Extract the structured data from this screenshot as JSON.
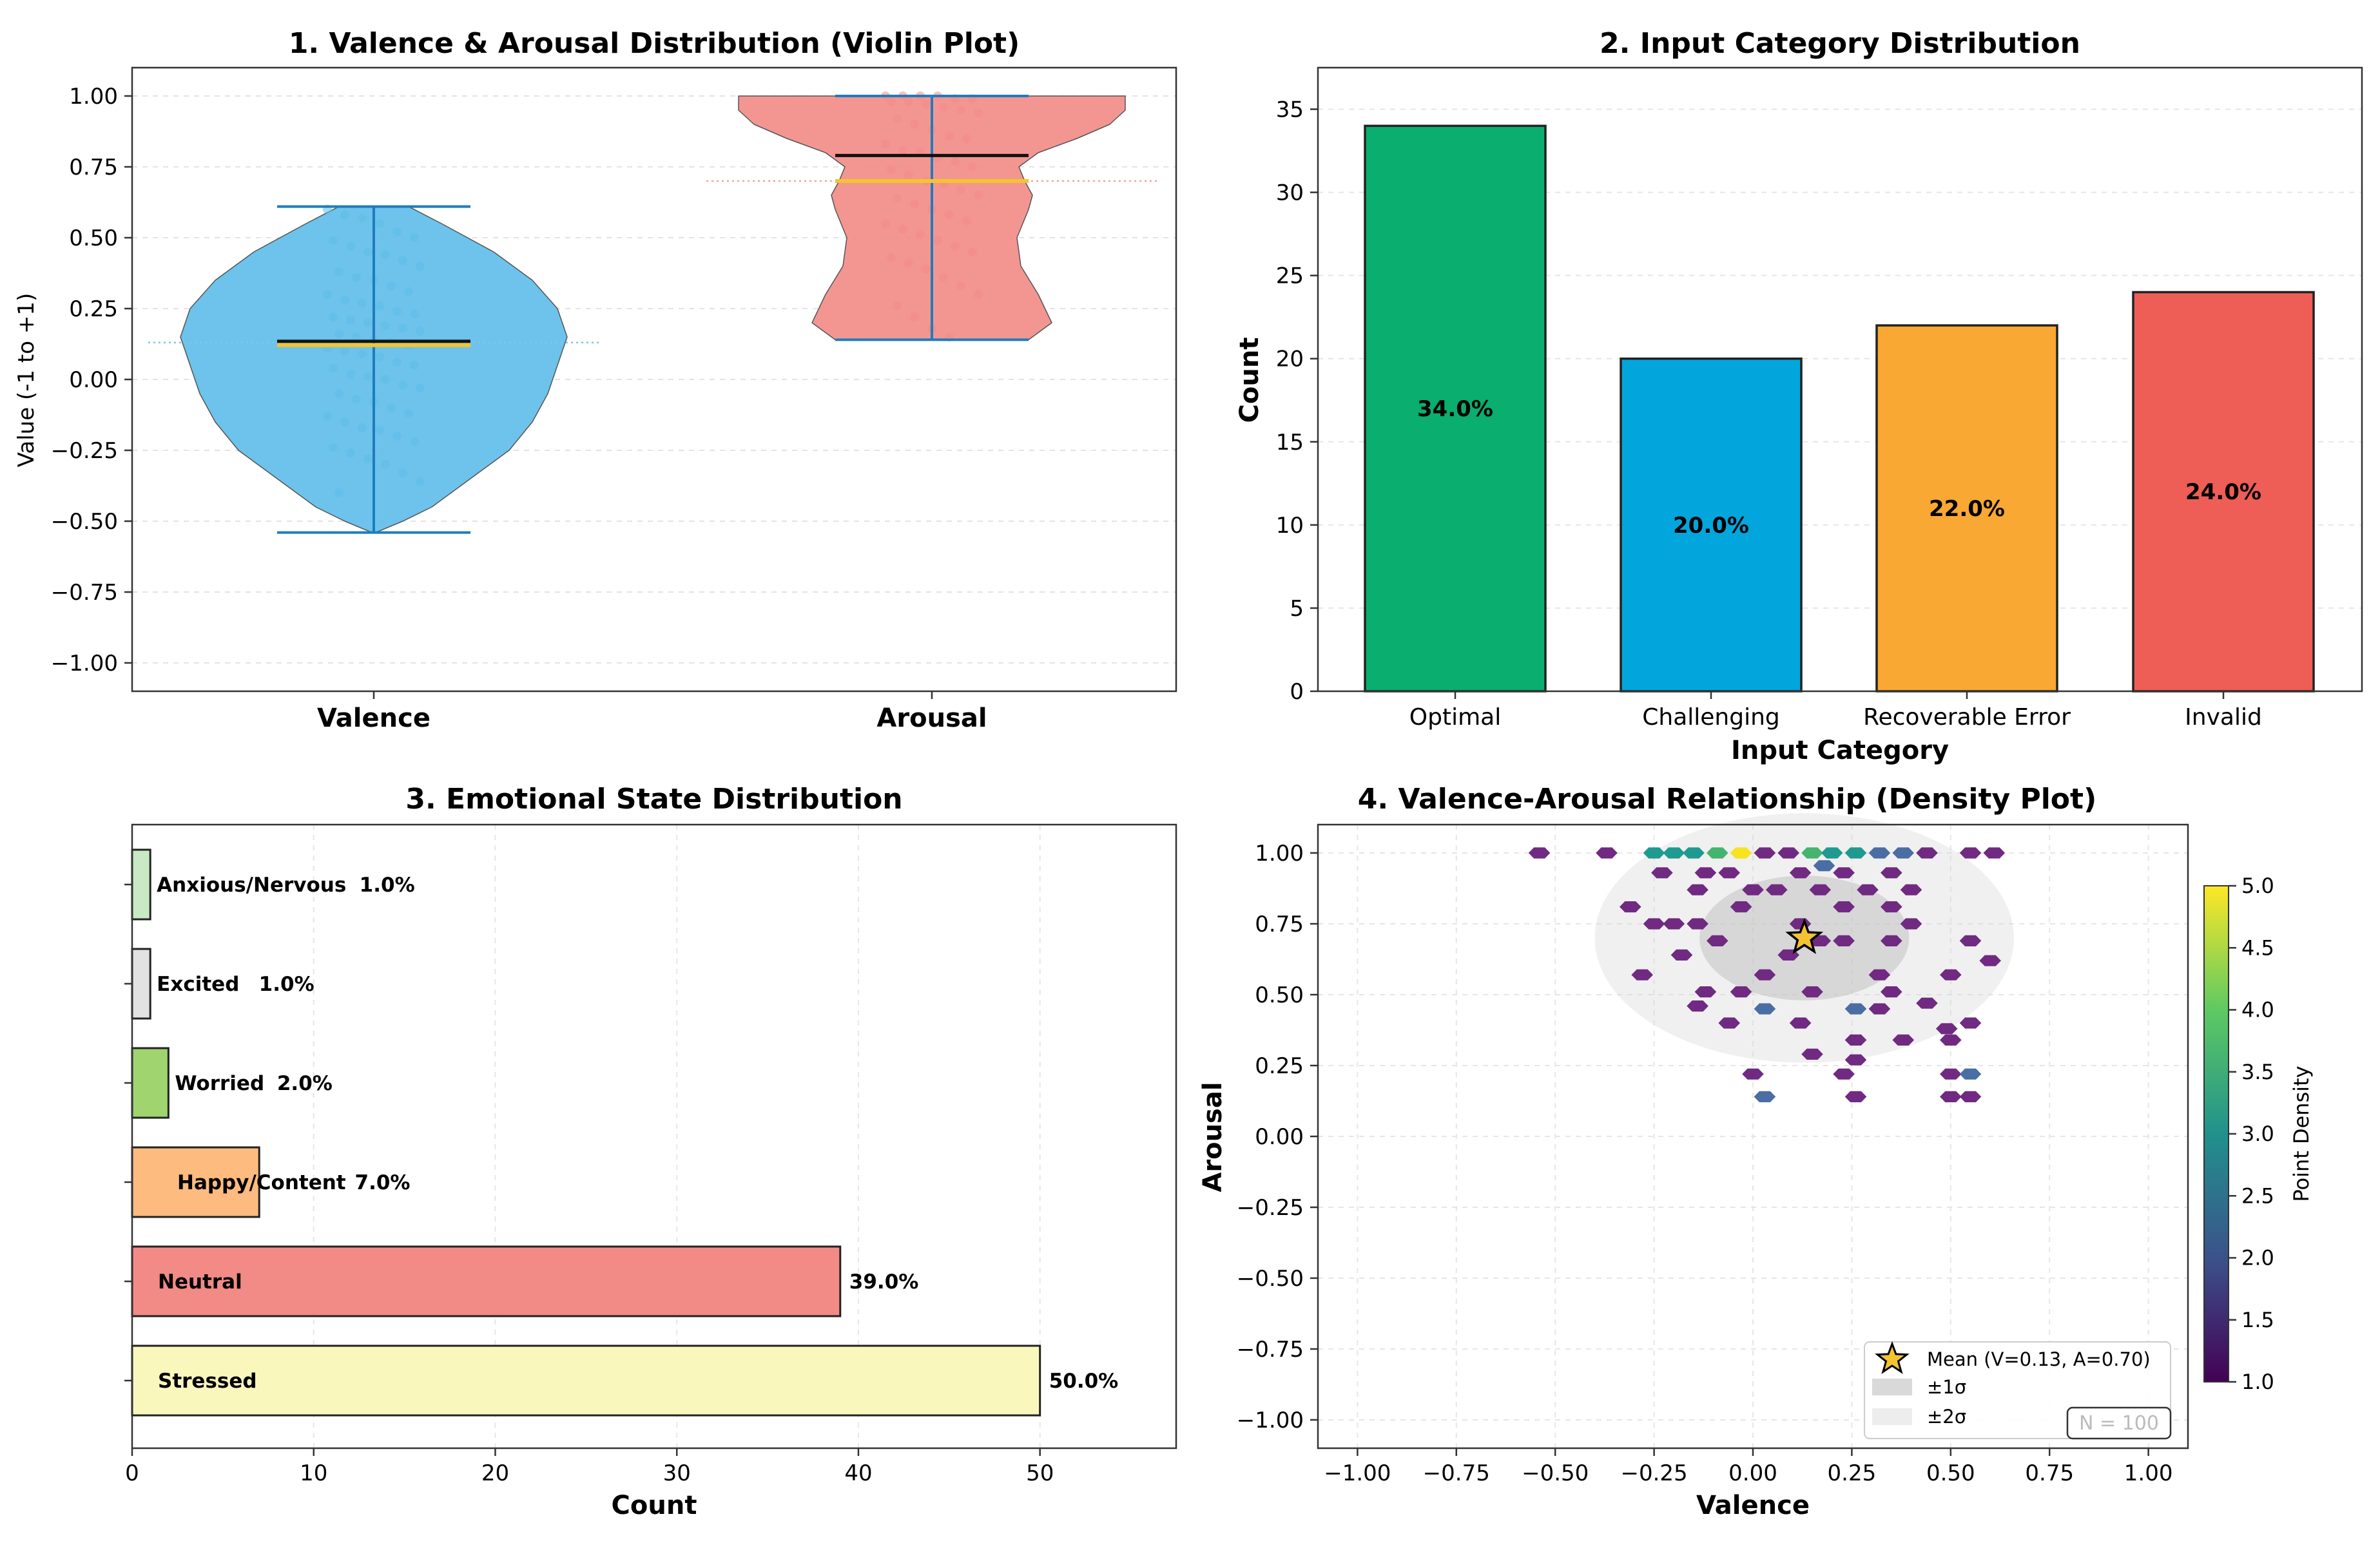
{
  "chart_data": [
    {
      "type": "violin",
      "title": "1. Valence & Arousal Distribution (Violin Plot)",
      "xlabel": "",
      "ylabel": "Value (-1 to +1)",
      "categories": [
        "Valence",
        "Arousal"
      ],
      "ylim": [
        -1.1,
        1.1
      ],
      "yticks": [
        "1.00",
        "0.75",
        "0.50",
        "0.25",
        "0.00",
        "−0.25",
        "−0.50",
        "−0.75",
        "−1.00"
      ],
      "ytick_values": [
        1.0,
        0.75,
        0.5,
        0.25,
        0.0,
        -0.25,
        -0.5,
        -0.75,
        -1.0
      ],
      "grid": true,
      "series": [
        {
          "name": "Valence",
          "min": -0.54,
          "max": 0.61,
          "median": 0.13,
          "mean": 0.13,
          "color": "#5dbde9",
          "profile": [
            [
              -0.54,
              0.01
            ],
            [
              -0.5,
              0.15
            ],
            [
              -0.45,
              0.3
            ],
            [
              -0.35,
              0.5
            ],
            [
              -0.25,
              0.7
            ],
            [
              -0.15,
              0.82
            ],
            [
              -0.05,
              0.9
            ],
            [
              0.05,
              0.95
            ],
            [
              0.15,
              1.0
            ],
            [
              0.25,
              0.95
            ],
            [
              0.35,
              0.82
            ],
            [
              0.45,
              0.62
            ],
            [
              0.55,
              0.35
            ],
            [
              0.61,
              0.18
            ]
          ],
          "points": [
            0.6,
            0.58,
            0.57,
            0.55,
            0.52,
            0.5,
            0.49,
            0.47,
            0.45,
            0.44,
            0.42,
            0.4,
            0.38,
            0.36,
            0.35,
            0.33,
            0.31,
            0.3,
            0.28,
            0.27,
            0.26,
            0.24,
            0.23,
            0.22,
            0.21,
            0.2,
            0.19,
            0.18,
            0.17,
            0.16,
            0.15,
            0.14,
            0.13,
            0.12,
            0.11,
            0.1,
            0.09,
            0.08,
            0.06,
            0.05,
            0.04,
            0.02,
            0.01,
            0.0,
            -0.02,
            -0.03,
            -0.05,
            -0.07,
            -0.08,
            -0.1,
            -0.12,
            -0.13,
            -0.15,
            -0.17,
            -0.18,
            -0.2,
            -0.22,
            -0.24,
            -0.26,
            -0.28,
            -0.3,
            -0.33,
            -0.36,
            -0.4
          ]
        },
        {
          "name": "Arousal",
          "min": 0.14,
          "max": 1.0,
          "median": 0.79,
          "mean": 0.7,
          "color": "#f28b86",
          "profile": [
            [
              0.14,
              0.5
            ],
            [
              0.2,
              0.62
            ],
            [
              0.3,
              0.55
            ],
            [
              0.4,
              0.46
            ],
            [
              0.5,
              0.44
            ],
            [
              0.6,
              0.5
            ],
            [
              0.65,
              0.52
            ],
            [
              0.7,
              0.48
            ],
            [
              0.75,
              0.45
            ],
            [
              0.8,
              0.55
            ],
            [
              0.85,
              0.75
            ],
            [
              0.9,
              0.92
            ],
            [
              0.95,
              1.0
            ],
            [
              1.0,
              1.0
            ]
          ],
          "points": [
            1.0,
            1.0,
            1.0,
            1.0,
            0.99,
            0.99,
            0.98,
            0.98,
            0.97,
            0.96,
            0.95,
            0.94,
            0.92,
            0.9,
            0.88,
            0.86,
            0.85,
            0.83,
            0.81,
            0.8,
            0.78,
            0.77,
            0.75,
            0.74,
            0.72,
            0.7,
            0.69,
            0.67,
            0.65,
            0.64,
            0.62,
            0.6,
            0.58,
            0.56,
            0.55,
            0.53,
            0.51,
            0.49,
            0.47,
            0.45,
            0.43,
            0.41,
            0.39,
            0.36,
            0.33,
            0.3,
            0.26,
            0.22,
            0.18,
            0.15
          ]
        }
      ]
    },
    {
      "type": "bar",
      "title": "2. Input Category Distribution",
      "xlabel": "Input Category",
      "ylabel": "Count",
      "categories": [
        "Optimal",
        "Challenging",
        "Recoverable Error",
        "Invalid"
      ],
      "values": [
        34,
        20,
        22,
        24
      ],
      "labels": [
        "34.0%",
        "20.0%",
        "22.0%",
        "24.0%"
      ],
      "colors": [
        "#0aae6e",
        "#02a6dd",
        "#f9a834",
        "#ee5e56"
      ],
      "ylim": [
        0,
        37.5
      ],
      "yticks": [
        0,
        5,
        10,
        15,
        20,
        25,
        30,
        35
      ],
      "grid": true
    },
    {
      "type": "barh",
      "title": "3. Emotional State Distribution",
      "xlabel": "Count",
      "ylabel": "",
      "categories": [
        "Anxious/Nervous",
        "Excited",
        "Worried",
        "Happy/Content",
        "Neutral",
        "Stressed"
      ],
      "values": [
        1,
        1,
        2,
        7,
        39,
        50
      ],
      "labels": [
        "1.0%",
        "1.0%",
        "2.0%",
        "7.0%",
        "39.0%",
        "50.0%"
      ],
      "colors": [
        "#c9e9c4",
        "#e2e2e2",
        "#9fd46f",
        "#fdbb7f",
        "#f28a86",
        "#f9f7bc"
      ],
      "xlim": [
        0,
        57.5
      ],
      "xticks": [
        0,
        10,
        20,
        30,
        40,
        50
      ],
      "grid": true
    },
    {
      "type": "hexbin",
      "title": "4. Valence-Arousal Relationship (Density Plot)",
      "xlabel": "Valence",
      "ylabel": "Arousal",
      "xlim": [
        -1.1,
        1.1
      ],
      "ylim": [
        -1.1,
        1.1
      ],
      "xticks": [
        "−1.00",
        "−0.75",
        "−0.50",
        "−0.25",
        "0.00",
        "0.25",
        "0.50",
        "0.75",
        "1.00"
      ],
      "xtick_values": [
        -1.0,
        -0.75,
        -0.5,
        -0.25,
        0.0,
        0.25,
        0.5,
        0.75,
        1.0
      ],
      "yticks": [
        "1.00",
        "0.75",
        "0.50",
        "0.25",
        "0.00",
        "−0.25",
        "−0.50",
        "−0.75",
        "−1.00"
      ],
      "ytick_values": [
        1.0,
        0.75,
        0.5,
        0.25,
        0.0,
        -0.25,
        -0.5,
        -0.75,
        -1.0
      ],
      "grid": true,
      "mean": {
        "x": 0.13,
        "y": 0.7
      },
      "sigma1": {
        "rx": 0.265,
        "ry": 0.22
      },
      "sigma2": {
        "rx": 0.53,
        "ry": 0.44
      },
      "cells": [
        {
          "x": -0.54,
          "y": 1.0,
          "c": 1
        },
        {
          "x": -0.37,
          "y": 1.0,
          "c": 1
        },
        {
          "x": -0.25,
          "y": 1.0,
          "c": 3
        },
        {
          "x": -0.2,
          "y": 1.0,
          "c": 3
        },
        {
          "x": -0.15,
          "y": 1.0,
          "c": 3
        },
        {
          "x": -0.09,
          "y": 1.0,
          "c": 4
        },
        {
          "x": -0.03,
          "y": 1.0,
          "c": 5
        },
        {
          "x": 0.03,
          "y": 1.0,
          "c": 1
        },
        {
          "x": 0.09,
          "y": 1.0,
          "c": 1
        },
        {
          "x": 0.15,
          "y": 1.0,
          "c": 4
        },
        {
          "x": 0.2,
          "y": 1.0,
          "c": 3
        },
        {
          "x": 0.26,
          "y": 1.0,
          "c": 3
        },
        {
          "x": 0.32,
          "y": 1.0,
          "c": 2
        },
        {
          "x": 0.38,
          "y": 1.0,
          "c": 2
        },
        {
          "x": 0.44,
          "y": 1.0,
          "c": 1
        },
        {
          "x": 0.55,
          "y": 1.0,
          "c": 1
        },
        {
          "x": 0.61,
          "y": 1.0,
          "c": 1
        },
        {
          "x": -0.23,
          "y": 0.93,
          "c": 1
        },
        {
          "x": -0.12,
          "y": 0.93,
          "c": 1
        },
        {
          "x": -0.06,
          "y": 0.93,
          "c": 1
        },
        {
          "x": 0.12,
          "y": 0.93,
          "c": 1
        },
        {
          "x": 0.23,
          "y": 0.93,
          "c": 1
        },
        {
          "x": 0.35,
          "y": 0.93,
          "c": 1
        },
        {
          "x": 0.18,
          "y": 0.955,
          "c": 2
        },
        {
          "x": -0.14,
          "y": 0.87,
          "c": 1
        },
        {
          "x": 0.0,
          "y": 0.87,
          "c": 1
        },
        {
          "x": 0.06,
          "y": 0.87,
          "c": 1
        },
        {
          "x": 0.17,
          "y": 0.87,
          "c": 1
        },
        {
          "x": 0.29,
          "y": 0.87,
          "c": 1
        },
        {
          "x": 0.4,
          "y": 0.87,
          "c": 1
        },
        {
          "x": -0.31,
          "y": 0.81,
          "c": 1
        },
        {
          "x": -0.03,
          "y": 0.81,
          "c": 1
        },
        {
          "x": 0.23,
          "y": 0.81,
          "c": 1
        },
        {
          "x": 0.35,
          "y": 0.81,
          "c": 1
        },
        {
          "x": -0.25,
          "y": 0.75,
          "c": 1
        },
        {
          "x": -0.2,
          "y": 0.75,
          "c": 1
        },
        {
          "x": -0.14,
          "y": 0.75,
          "c": 1
        },
        {
          "x": 0.12,
          "y": 0.75,
          "c": 1
        },
        {
          "x": 0.4,
          "y": 0.75,
          "c": 1
        },
        {
          "x": -0.09,
          "y": 0.69,
          "c": 1
        },
        {
          "x": 0.17,
          "y": 0.69,
          "c": 1
        },
        {
          "x": 0.23,
          "y": 0.69,
          "c": 1
        },
        {
          "x": 0.35,
          "y": 0.69,
          "c": 1
        },
        {
          "x": 0.55,
          "y": 0.69,
          "c": 1
        },
        {
          "x": -0.18,
          "y": 0.64,
          "c": 1
        },
        {
          "x": 0.09,
          "y": 0.64,
          "c": 1
        },
        {
          "x": 0.6,
          "y": 0.62,
          "c": 1
        },
        {
          "x": -0.28,
          "y": 0.57,
          "c": 1
        },
        {
          "x": 0.03,
          "y": 0.57,
          "c": 1
        },
        {
          "x": 0.32,
          "y": 0.57,
          "c": 1
        },
        {
          "x": 0.5,
          "y": 0.57,
          "c": 1
        },
        {
          "x": -0.12,
          "y": 0.51,
          "c": 1
        },
        {
          "x": -0.03,
          "y": 0.51,
          "c": 1
        },
        {
          "x": 0.15,
          "y": 0.51,
          "c": 1
        },
        {
          "x": 0.35,
          "y": 0.51,
          "c": 1
        },
        {
          "x": 0.44,
          "y": 0.47,
          "c": 1
        },
        {
          "x": -0.14,
          "y": 0.46,
          "c": 1
        },
        {
          "x": 0.03,
          "y": 0.45,
          "c": 2
        },
        {
          "x": 0.26,
          "y": 0.45,
          "c": 2
        },
        {
          "x": 0.32,
          "y": 0.45,
          "c": 1
        },
        {
          "x": 0.55,
          "y": 0.4,
          "c": 1
        },
        {
          "x": 0.49,
          "y": 0.38,
          "c": 1
        },
        {
          "x": -0.06,
          "y": 0.4,
          "c": 1
        },
        {
          "x": 0.12,
          "y": 0.4,
          "c": 1
        },
        {
          "x": 0.26,
          "y": 0.34,
          "c": 1
        },
        {
          "x": 0.38,
          "y": 0.34,
          "c": 1
        },
        {
          "x": 0.5,
          "y": 0.34,
          "c": 1
        },
        {
          "x": 0.15,
          "y": 0.29,
          "c": 1
        },
        {
          "x": 0.26,
          "y": 0.27,
          "c": 1
        },
        {
          "x": 0.0,
          "y": 0.22,
          "c": 1
        },
        {
          "x": 0.23,
          "y": 0.22,
          "c": 1
        },
        {
          "x": 0.5,
          "y": 0.22,
          "c": 1
        },
        {
          "x": 0.55,
          "y": 0.22,
          "c": 2
        },
        {
          "x": 0.03,
          "y": 0.14,
          "c": 2
        },
        {
          "x": 0.26,
          "y": 0.14,
          "c": 1
        },
        {
          "x": 0.5,
          "y": 0.14,
          "c": 1
        },
        {
          "x": 0.55,
          "y": 0.14,
          "c": 1
        }
      ],
      "legend": {
        "entries": [
          "Mean (V=0.13, A=0.70)",
          "±1σ",
          "±2σ"
        ],
        "placement": "lower right"
      },
      "n_label": "N = 100",
      "colorbar": {
        "label": "Point Density",
        "min": 1.0,
        "max": 5.0,
        "ticks": [
          "5.0",
          "4.5",
          "4.0",
          "3.5",
          "3.0",
          "2.5",
          "2.0",
          "1.5",
          "1.0"
        ],
        "tick_values": [
          5.0,
          4.5,
          4.0,
          3.5,
          3.0,
          2.5,
          2.0,
          1.5,
          1.0
        ],
        "colors": [
          "#440154",
          "#3b528b",
          "#21918c",
          "#5ec962",
          "#fde725"
        ]
      }
    }
  ]
}
